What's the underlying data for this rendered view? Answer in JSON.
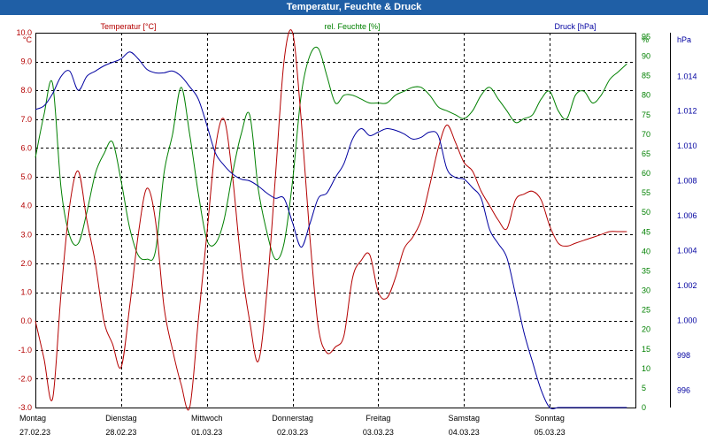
{
  "window": {
    "title": "Temperatur, Feuchte & Druck"
  },
  "colors": {
    "title_bg": "#1f5fa6",
    "temperature": "#b40000",
    "humidity": "#008000",
    "pressure": "#0000a0",
    "grid": "#000000"
  },
  "chart_data": {
    "type": "line",
    "title": "Temperatur, Feuchte & Druck",
    "grid": true,
    "x_labels": [
      {
        "day": "Montag",
        "date": "27.02.23"
      },
      {
        "day": "Dienstag",
        "date": "28.02.23"
      },
      {
        "day": "Mittwoch",
        "date": "01.03.23"
      },
      {
        "day": "Donnerstag",
        "date": "02.03.23"
      },
      {
        "day": "Freitag",
        "date": "03.03.23"
      },
      {
        "day": "Samstag",
        "date": "04.03.23"
      },
      {
        "day": "Sonntag",
        "date": "05.03.23"
      }
    ],
    "x": [
      0,
      0.1,
      0.2,
      0.3,
      0.4,
      0.5,
      0.6,
      0.7,
      0.8,
      0.9,
      1.0,
      1.1,
      1.2,
      1.3,
      1.4,
      1.5,
      1.6,
      1.7,
      1.8,
      1.9,
      2.0,
      2.1,
      2.2,
      2.3,
      2.4,
      2.5,
      2.6,
      2.7,
      2.8,
      2.9,
      3.0,
      3.1,
      3.2,
      3.3,
      3.4,
      3.5,
      3.6,
      3.7,
      3.8,
      3.9,
      4.0,
      4.1,
      4.2,
      4.3,
      4.4,
      4.5,
      4.6,
      4.7,
      4.8,
      4.9,
      5.0,
      5.1,
      5.2,
      5.3,
      5.4,
      5.5,
      5.6,
      5.7,
      5.8,
      5.9,
      6.0,
      6.1,
      6.2,
      6.3,
      6.4,
      6.5,
      6.6,
      6.7,
      6.8,
      6.9
    ],
    "x_range": [
      0,
      7
    ],
    "series": [
      {
        "name": "Temperatur [°C]",
        "axis": "left",
        "unit": "°C",
        "ylim": [
          -3.0,
          10.0
        ],
        "ticks": [
          "10.0",
          "9.0",
          "8.0",
          "7.0",
          "6.0",
          "5.0",
          "4.0",
          "3.0",
          "2.0",
          "1.0",
          "0.0",
          "-1.0",
          "-2.0",
          "-3.0"
        ],
        "values": [
          0.0,
          -1.3,
          -2.7,
          1.0,
          4.0,
          5.2,
          3.5,
          2.0,
          0.0,
          -0.8,
          -1.6,
          0.5,
          3.0,
          4.6,
          3.5,
          0.5,
          -1.0,
          -2.2,
          -3.1,
          0.0,
          3.0,
          6.0,
          7.0,
          5.0,
          2.0,
          0.0,
          -1.4,
          1.0,
          5.0,
          9.0,
          10.2,
          7.0,
          3.0,
          -0.2,
          -1.1,
          -0.9,
          -0.5,
          1.5,
          2.1,
          2.3,
          1.0,
          0.8,
          1.5,
          2.5,
          2.9,
          3.5,
          4.7,
          6.0,
          6.8,
          6.2,
          5.5,
          5.2,
          4.5,
          4.0,
          3.5,
          3.2,
          4.2,
          4.4,
          4.5,
          4.2,
          3.3,
          2.7,
          2.6,
          2.7,
          2.8,
          2.9,
          3.0,
          3.1,
          3.1,
          3.1
        ]
      },
      {
        "name": "rel. Feuchte [%]",
        "axis": "right",
        "unit": "%",
        "ylim": [
          0,
          96
        ],
        "ticks": [
          "0",
          "5",
          "10",
          "15",
          "20",
          "25",
          "30",
          "35",
          "40",
          "45",
          "50",
          "55",
          "60",
          "65",
          "70",
          "75",
          "80",
          "85",
          "90",
          "95"
        ],
        "values": [
          64,
          75,
          83,
          56,
          44,
          42,
          50,
          60,
          65,
          68,
          58,
          46,
          39,
          38,
          40,
          60,
          70,
          82,
          70,
          55,
          43,
          42,
          48,
          60,
          70,
          75,
          56,
          45,
          38,
          42,
          58,
          80,
          90,
          92,
          85,
          78,
          80,
          80,
          79,
          78,
          78,
          78,
          80,
          81,
          82,
          82,
          80,
          77,
          76,
          75,
          74,
          76,
          80,
          82,
          79,
          76,
          73,
          74,
          75,
          79,
          81,
          76,
          74,
          80,
          81,
          78,
          80,
          84,
          86,
          88
        ]
      },
      {
        "name": "Druck [hPa]",
        "axis": "right",
        "unit": "hPa",
        "ylim": [
          995.0,
          1016.5
        ],
        "ticks": [
          "996",
          "998",
          "1.000",
          "1.002",
          "1.004",
          "1.006",
          "1.008",
          "1.010",
          "1.012",
          "1.014"
        ],
        "values": [
          1012.1,
          1012.3,
          1013.0,
          1014.0,
          1014.3,
          1013.2,
          1014.0,
          1014.3,
          1014.6,
          1014.8,
          1015.0,
          1015.4,
          1015.0,
          1014.4,
          1014.2,
          1014.2,
          1014.3,
          1014.0,
          1013.4,
          1012.7,
          1011.2,
          1009.6,
          1008.9,
          1008.4,
          1008.1,
          1008.0,
          1007.7,
          1007.3,
          1007.0,
          1007.0,
          1005.6,
          1004.2,
          1005.5,
          1007.0,
          1007.3,
          1008.2,
          1009.0,
          1010.4,
          1011.0,
          1010.6,
          1010.8,
          1011.0,
          1010.9,
          1010.7,
          1010.4,
          1010.5,
          1010.8,
          1010.6,
          1008.7,
          1008.2,
          1008.1,
          1007.6,
          1007.0,
          1005.2,
          1004.4,
          1003.6,
          1001.5,
          999.3,
          997.6,
          996.0,
          994.6,
          994.0,
          993.6,
          993.5,
          993.4,
          993.3,
          993.3,
          993.2,
          993.2,
          993.1
        ]
      }
    ]
  }
}
